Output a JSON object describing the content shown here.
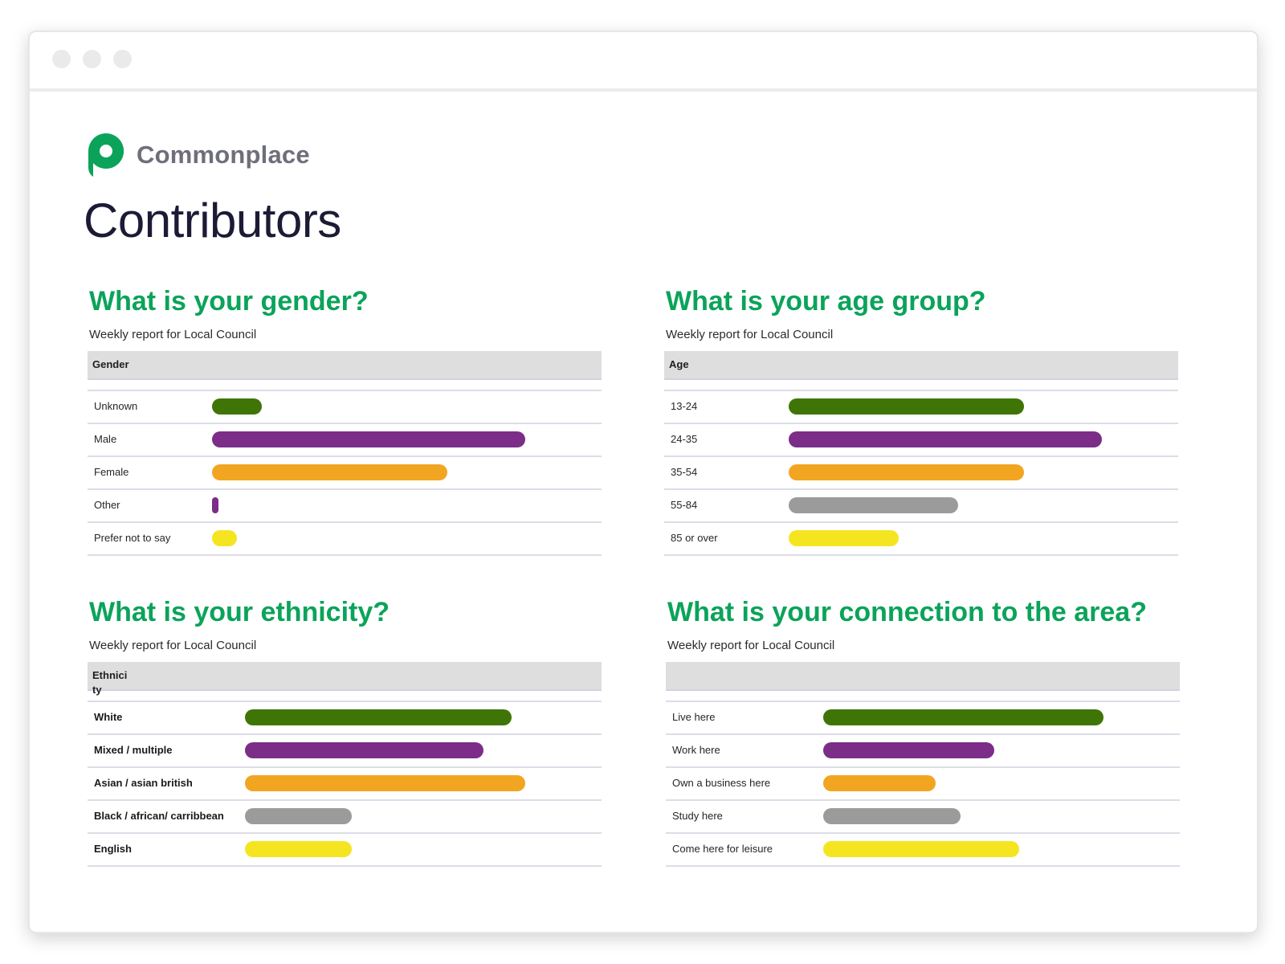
{
  "brand": {
    "name": "Commonplace",
    "color": "#0ba35a"
  },
  "page_title": "Contributors",
  "colors": {
    "green": "#3f7506",
    "purple": "#7b2d87",
    "orange": "#f2a520",
    "gray": "#9b9b9b",
    "yellow": "#f5e520"
  },
  "panels": [
    {
      "title": "What is your gender?",
      "subtitle": "Weekly report for Local Council",
      "header": "Gender",
      "rows": [
        {
          "label": "Unknown",
          "color": "green",
          "fraction": 0.16
        },
        {
          "label": "Male",
          "color": "purple",
          "fraction": 1.0
        },
        {
          "label": "Female",
          "color": "orange",
          "fraction": 0.75
        },
        {
          "label": "Other",
          "color": "purple",
          "fraction": 0.02
        },
        {
          "label": "Prefer not to say",
          "color": "yellow",
          "fraction": 0.08
        }
      ]
    },
    {
      "title": "What is your age group?",
      "subtitle": "Weekly report for Local Council",
      "header": "Age",
      "rows": [
        {
          "label": "13-24",
          "color": "green",
          "fraction": 0.75
        },
        {
          "label": "24-35",
          "color": "purple",
          "fraction": 1.0
        },
        {
          "label": "35-54",
          "color": "orange",
          "fraction": 0.75
        },
        {
          "label": "55-84",
          "color": "gray",
          "fraction": 0.54
        },
        {
          "label": "85 or over",
          "color": "yellow",
          "fraction": 0.35
        }
      ]
    },
    {
      "title": "What is your ethnicity?",
      "subtitle": "Weekly report for Local Council",
      "header": "Ethnici ty",
      "rows": [
        {
          "label": "White",
          "color": "green",
          "fraction": 0.95
        },
        {
          "label": "Mixed / multiple",
          "color": "purple",
          "fraction": 0.85
        },
        {
          "label": "Asian / asian british",
          "color": "orange",
          "fraction": 1.0
        },
        {
          "label": "Black / african/ carribbean",
          "color": "gray",
          "fraction": 0.38
        },
        {
          "label": "English",
          "color": "yellow",
          "fraction": 0.38
        }
      ]
    },
    {
      "title": "What is your connection to the area?",
      "subtitle": "Weekly report for Local Council",
      "header": "",
      "rows": [
        {
          "label": "Live here",
          "color": "green",
          "fraction": 1.0
        },
        {
          "label": "Work here",
          "color": "purple",
          "fraction": 0.61
        },
        {
          "label": "Own a business here",
          "color": "orange",
          "fraction": 0.4
        },
        {
          "label": "Study here",
          "color": "gray",
          "fraction": 0.49
        },
        {
          "label": "Come here for leisure",
          "color": "yellow",
          "fraction": 0.7
        }
      ]
    }
  ]
}
